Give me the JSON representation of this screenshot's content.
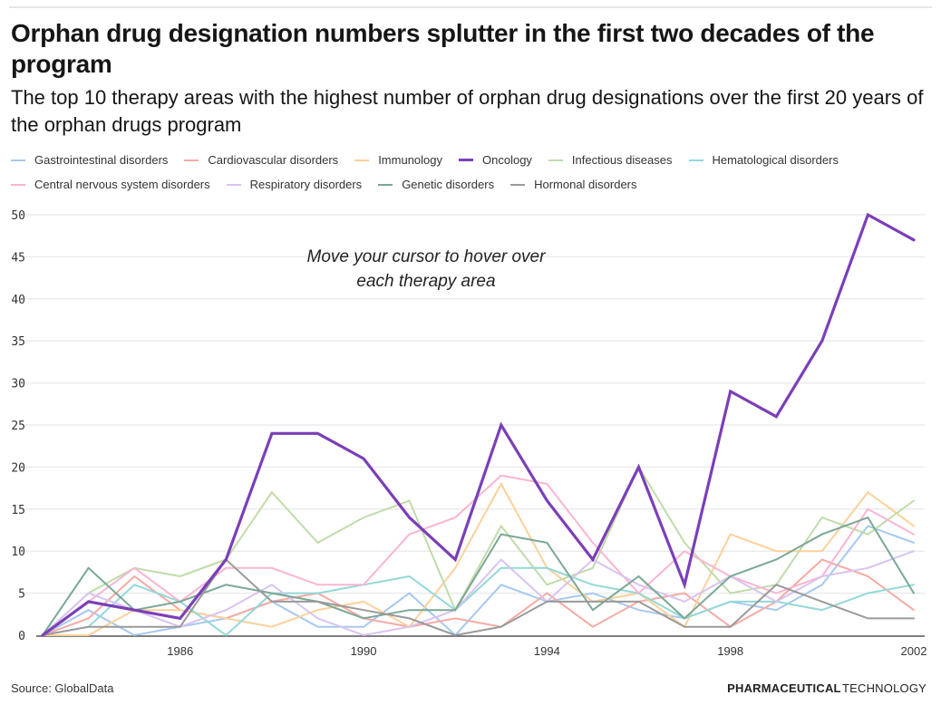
{
  "header": {
    "title": "Orphan drug designation numbers splutter in the first two decades of the program",
    "subtitle": "The top 10 therapy areas with the highest number of orphan drug designations over the first 20 years of the orphan drugs program"
  },
  "footer": {
    "source": "Source: GlobalData",
    "brand_bold": "PHARMACEUTICAL",
    "brand_light": "TECHNOLOGY"
  },
  "chart_data": {
    "type": "line",
    "title": "Orphan drug designation numbers splutter in the first two decades of the program",
    "subtitle": "The top 10 therapy areas with the highest number of orphan drug designations over the first 20 years of the orphan drugs program",
    "xlabel": "",
    "ylabel": "",
    "x": [
      1983,
      1984,
      1985,
      1986,
      1987,
      1988,
      1989,
      1990,
      1991,
      1992,
      1993,
      1994,
      1995,
      1996,
      1997,
      1998,
      1999,
      2000,
      2001,
      2002
    ],
    "xlim": [
      1983,
      2002
    ],
    "ylim": [
      0,
      50
    ],
    "x_ticks": [
      "1986",
      "1990",
      "1994",
      "1998",
      "2002"
    ],
    "x_tick_values": [
      1986,
      1990,
      1994,
      1998,
      2002
    ],
    "y_ticks": [
      "0",
      "5",
      "10",
      "15",
      "20",
      "25",
      "30",
      "35",
      "40",
      "45",
      "50"
    ],
    "y_tick_values": [
      0,
      5,
      10,
      15,
      20,
      25,
      30,
      35,
      40,
      45,
      50
    ],
    "grid": true,
    "legend_position": "top",
    "annotation": [
      "Move your cursor to hover over",
      "each therapy area"
    ],
    "series": [
      {
        "name": "Gastrointestinal disorders",
        "color": "#a6c8f0",
        "highlight": false,
        "values": [
          0,
          3,
          0,
          1,
          2,
          4,
          1,
          1,
          5,
          0,
          6,
          4,
          5,
          3,
          2,
          4,
          3,
          6,
          13,
          11
        ]
      },
      {
        "name": "Cardiovascular disorders",
        "color": "#f7aaa3",
        "highlight": false,
        "values": [
          0,
          2,
          7,
          3,
          2,
          4,
          5,
          2,
          1,
          2,
          1,
          5,
          1,
          4,
          5,
          1,
          4,
          9,
          7,
          3
        ]
      },
      {
        "name": "Immunology",
        "color": "#fdd09a",
        "highlight": false,
        "values": [
          0,
          0,
          3,
          3,
          2,
          1,
          3,
          4,
          1,
          8,
          18,
          8,
          4,
          5,
          1,
          12,
          10,
          10,
          17,
          13
        ]
      },
      {
        "name": "Oncology",
        "color": "#7b3fb8",
        "highlight": true,
        "values": [
          0,
          4,
          3,
          2,
          9,
          24,
          24,
          21,
          14,
          9,
          25,
          16,
          9,
          20,
          6,
          29,
          26,
          35,
          50,
          47
        ]
      },
      {
        "name": "Infectious diseases",
        "color": "#bfdca9",
        "highlight": false,
        "values": [
          0,
          5,
          8,
          7,
          9,
          17,
          11,
          14,
          16,
          3,
          13,
          6,
          8,
          20,
          11,
          5,
          6,
          14,
          12,
          16
        ]
      },
      {
        "name": "Hematological disorders",
        "color": "#93d8d8",
        "highlight": false,
        "values": [
          0,
          1,
          6,
          4,
          0,
          5,
          5,
          6,
          7,
          3,
          8,
          8,
          6,
          5,
          2,
          4,
          4,
          3,
          5,
          6
        ]
      },
      {
        "name": "Central nervous system disorders",
        "color": "#fbb4d2",
        "highlight": false,
        "values": [
          0,
          4,
          8,
          4,
          8,
          8,
          6,
          6,
          12,
          14,
          19,
          18,
          11,
          5,
          10,
          7,
          5,
          7,
          15,
          12
        ]
      },
      {
        "name": "Respiratory disorders",
        "color": "#d8c3f0",
        "highlight": false,
        "values": [
          0,
          5,
          3,
          1,
          3,
          6,
          2,
          0,
          1,
          3,
          9,
          4,
          9,
          6,
          4,
          7,
          4,
          7,
          8,
          10
        ]
      },
      {
        "name": "Genetic disorders",
        "color": "#7aa894",
        "highlight": false,
        "values": [
          0,
          8,
          3,
          4,
          6,
          5,
          4,
          2,
          3,
          3,
          12,
          11,
          3,
          7,
          2,
          7,
          9,
          12,
          14,
          5
        ]
      },
      {
        "name": "Hormonal disorders",
        "color": "#9a9a9a",
        "highlight": false,
        "values": [
          0,
          1,
          1,
          1,
          9,
          4,
          4,
          3,
          2,
          0,
          1,
          4,
          4,
          4,
          1,
          1,
          6,
          4,
          2,
          2
        ]
      }
    ]
  }
}
